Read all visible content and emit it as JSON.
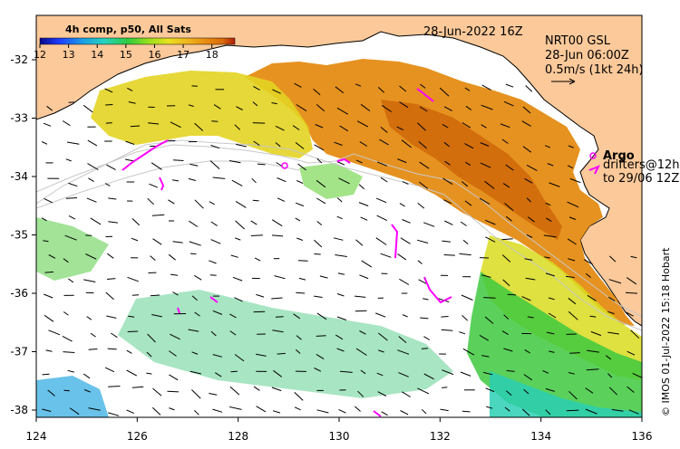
{
  "map": {
    "title_date": "28-Jun-2022 16Z",
    "product": {
      "line1": "NRT00 GSL",
      "line2": "28-Jun 06:00Z",
      "line3": "0.5m/s (1kt 24h)"
    },
    "colorbar": {
      "title": "4h comp, p50, All Sats",
      "ticks": [
        "12",
        "13",
        "14",
        "15",
        "16",
        "17",
        "18"
      ],
      "min": 12,
      "max": 18.8,
      "colors": [
        "#0a0a8a",
        "#1f3cff",
        "#1a9fe6",
        "#26d3c0",
        "#2ecc40",
        "#9be01a",
        "#e8e020",
        "#f0b41e",
        "#e88a10",
        "#d86a0a",
        "#b21b0a"
      ]
    },
    "legend": {
      "argo_label": "Argo",
      "drifters_label": "drifters@12h",
      "drifters_to": "to 29/06 12Z",
      "argo_color": "#ff00ff",
      "drifter_color": "#ff00ff"
    },
    "credit": "© IMOS 01-Jul-2022 15:18 Hobart",
    "axes": {
      "lon_ticks": [
        "124",
        "126",
        "128",
        "130",
        "132",
        "134",
        "136"
      ],
      "lat_ticks": [
        "-32",
        "-33",
        "-34",
        "-35",
        "-36",
        "-37",
        "-38"
      ]
    },
    "colors": {
      "land": "#fbc99a",
      "coast": "#000000",
      "contour": "#c8c8c8"
    }
  }
}
